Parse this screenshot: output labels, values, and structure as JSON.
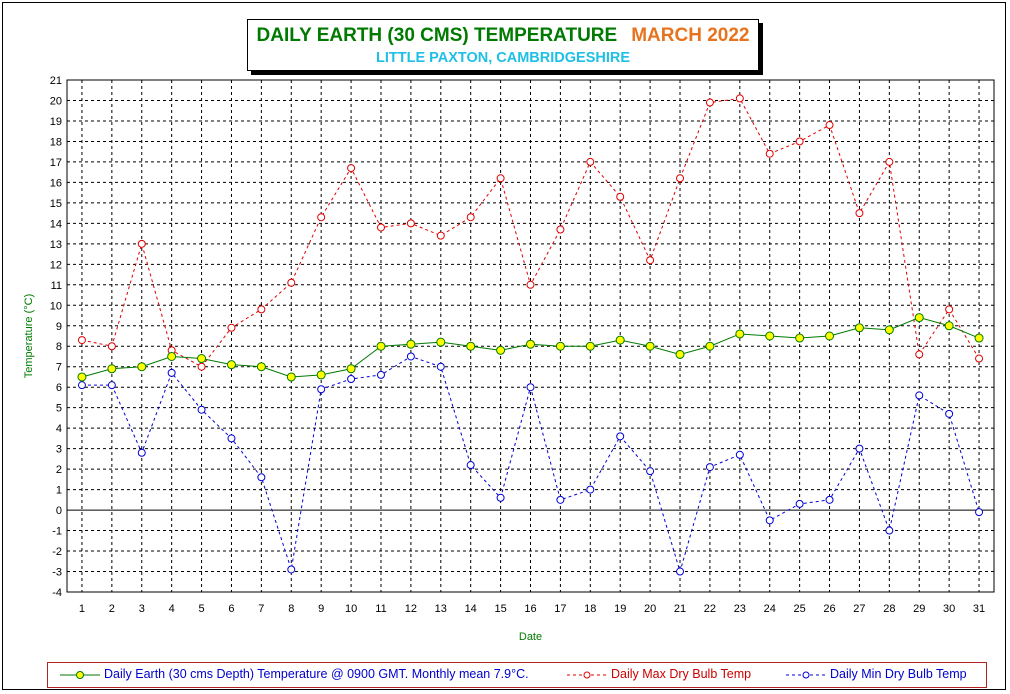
{
  "title": {
    "main": "DAILY EARTH (30 CMS) TEMPERATURE",
    "month": "MARCH 2022",
    "subtitle": "LITTLE PAXTON, CAMBRIDGESHIRE"
  },
  "colors": {
    "earth": "#007a00",
    "earth_marker": "#ffff00",
    "max": "#e00000",
    "min": "#0000d8",
    "title_main": "#007a00",
    "title_month": "#e8731e",
    "subtitle": "#1fbfe6"
  },
  "chart_data": {
    "type": "line",
    "xlabel": "Date",
    "ylabel": "Temperature (°C)",
    "x": [
      1,
      2,
      3,
      4,
      5,
      6,
      7,
      8,
      9,
      10,
      11,
      12,
      13,
      14,
      15,
      16,
      17,
      18,
      19,
      20,
      21,
      22,
      23,
      24,
      25,
      26,
      27,
      28,
      29,
      30,
      31
    ],
    "xlim": [
      0.5,
      31.5
    ],
    "ylim": [
      -4,
      21
    ],
    "yticks": [
      -4,
      -3,
      -2,
      -1,
      0,
      1,
      2,
      3,
      4,
      5,
      6,
      7,
      8,
      9,
      10,
      11,
      12,
      13,
      14,
      15,
      16,
      17,
      18,
      19,
      20,
      21
    ],
    "grid": true,
    "legend_position": "bottom",
    "series": [
      {
        "name": "Daily Earth (30 cms Depth) Temperature @ 0900 GMT. Monthly mean 7.9°C.",
        "style": "solid",
        "values": [
          6.5,
          6.9,
          7.0,
          7.5,
          7.4,
          7.1,
          7.0,
          6.5,
          6.6,
          6.9,
          8.0,
          8.1,
          8.2,
          8.0,
          7.8,
          8.1,
          8.0,
          8.0,
          8.3,
          8.0,
          7.6,
          8.0,
          8.6,
          8.5,
          8.4,
          8.5,
          8.9,
          8.8,
          9.4,
          9.0,
          8.4
        ]
      },
      {
        "name": "Daily Max Dry Bulb Temp",
        "style": "dashed",
        "values": [
          8.3,
          8.0,
          13.0,
          7.8,
          7.0,
          8.9,
          9.8,
          11.1,
          14.3,
          16.7,
          13.8,
          14.0,
          13.4,
          14.3,
          16.2,
          11.0,
          13.7,
          17.0,
          15.3,
          12.2,
          16.2,
          19.9,
          20.1,
          17.4,
          18.0,
          18.8,
          14.5,
          17.0,
          7.6,
          9.8,
          7.4
        ]
      },
      {
        "name": "Daily Min Dry Bulb Temp",
        "style": "dashed",
        "values": [
          6.1,
          6.1,
          2.8,
          6.7,
          4.9,
          3.5,
          1.6,
          -2.9,
          5.9,
          6.4,
          6.6,
          7.5,
          7.0,
          2.2,
          0.6,
          6.0,
          0.5,
          1.0,
          3.6,
          1.9,
          -3.0,
          2.1,
          2.7,
          -0.5,
          0.3,
          0.5,
          3.0,
          -1.0,
          5.6,
          4.7,
          -0.1
        ]
      }
    ]
  }
}
